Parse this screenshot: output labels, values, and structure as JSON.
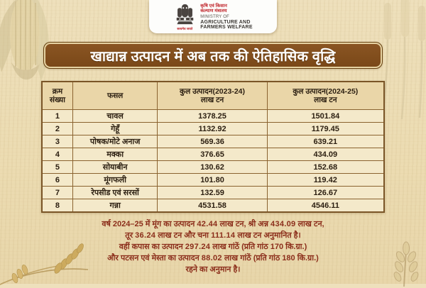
{
  "header": {
    "emblem_motto": "सत्यमेव जयते",
    "ministry_hindi_line1": "कृषि एवं किसान",
    "ministry_hindi_line2": "कल्याण मंत्रालय",
    "ministry_english_line1": "MINISTRY OF",
    "ministry_english_line2": "AGRICULTURE AND",
    "ministry_english_line3": "FARMERS WELFARE"
  },
  "banner": {
    "title": "खाद्यान्न उत्पादन में अब तक की ऐतिहासिक वृद्धि"
  },
  "table": {
    "headers": [
      {
        "line1": "क्रम",
        "line2": "संख्या"
      },
      {
        "line1": "फसल",
        "line2": ""
      },
      {
        "line1": "कुल उत्पादन(2023-24)",
        "line2": "लाख टन"
      },
      {
        "line1": "कुल उत्पादन(2024-25)",
        "line2": "लाख टन"
      }
    ],
    "rows": [
      {
        "sno": "1",
        "crop": "चावल",
        "y2324": "1378.25",
        "y2425": "1501.84"
      },
      {
        "sno": "2",
        "crop": "गेहूँ",
        "y2324": "1132.92",
        "y2425": "1179.45"
      },
      {
        "sno": "3",
        "crop": "पोषक/मोटे अनाज",
        "y2324": "569.36",
        "y2425": "639.21"
      },
      {
        "sno": "4",
        "crop": "मक्का",
        "y2324": "376.65",
        "y2425": "434.09"
      },
      {
        "sno": "5",
        "crop": "सोयाबीन",
        "y2324": "130.62",
        "y2425": "152.68"
      },
      {
        "sno": "6",
        "crop": "मूंगफली",
        "y2324": "101.80",
        "y2425": "119.42"
      },
      {
        "sno": "7",
        "crop": "रेपसीड एवं सरसों",
        "y2324": "132.59",
        "y2425": "126.67"
      },
      {
        "sno": "8",
        "crop": "गन्ना",
        "y2324": "4531.58",
        "y2425": "4546.11"
      }
    ]
  },
  "footer": {
    "lines": [
      [
        {
          "t": "वर्ष 2024–25 में मूंग का उत्पादन ",
          "b": false
        },
        {
          "t": "42.44",
          "b": true
        },
        {
          "t": " लाख टन, श्री अन्न ",
          "b": false
        },
        {
          "t": "434.09",
          "b": true
        },
        {
          "t": " लाख टन,",
          "b": false
        }
      ],
      [
        {
          "t": "तूर ",
          "b": false
        },
        {
          "t": "36.24",
          "b": true
        },
        {
          "t": " लाख टन और चना ",
          "b": false
        },
        {
          "t": "111.14",
          "b": true
        },
        {
          "t": " लाख टन अनुमानित है।",
          "b": false
        }
      ],
      [
        {
          "t": "वहीं कपास का उत्पादन ",
          "b": false
        },
        {
          "t": "297.24",
          "b": true
        },
        {
          "t": " लाख गांठें (प्रति गांठ 170 कि.ग्रा.)",
          "b": false
        }
      ],
      [
        {
          "t": "और पटसन एवं मेस्ता का उत्पादन ",
          "b": false
        },
        {
          "t": "88.02",
          "b": true
        },
        {
          "t": " लाख गांठें (प्रति गांठ 180 कि.ग्रा.)",
          "b": false
        }
      ],
      [
        {
          "t": "रहने का अनुमान है।",
          "b": false
        }
      ]
    ]
  },
  "colors": {
    "background": "#ecdcb4",
    "banner_bg": "#7d4b1c",
    "banner_border": "#e7d3a3",
    "banner_text": "#ffffff",
    "table_border": "#8a6330",
    "table_header_bg": "#ead6a8",
    "table_cell_bg": "#f4e9ca",
    "table_text": "#2d2012",
    "footer_text": "#8b2d1a",
    "ministry_red": "#c0272d",
    "emblem_color": "#4a4440"
  }
}
